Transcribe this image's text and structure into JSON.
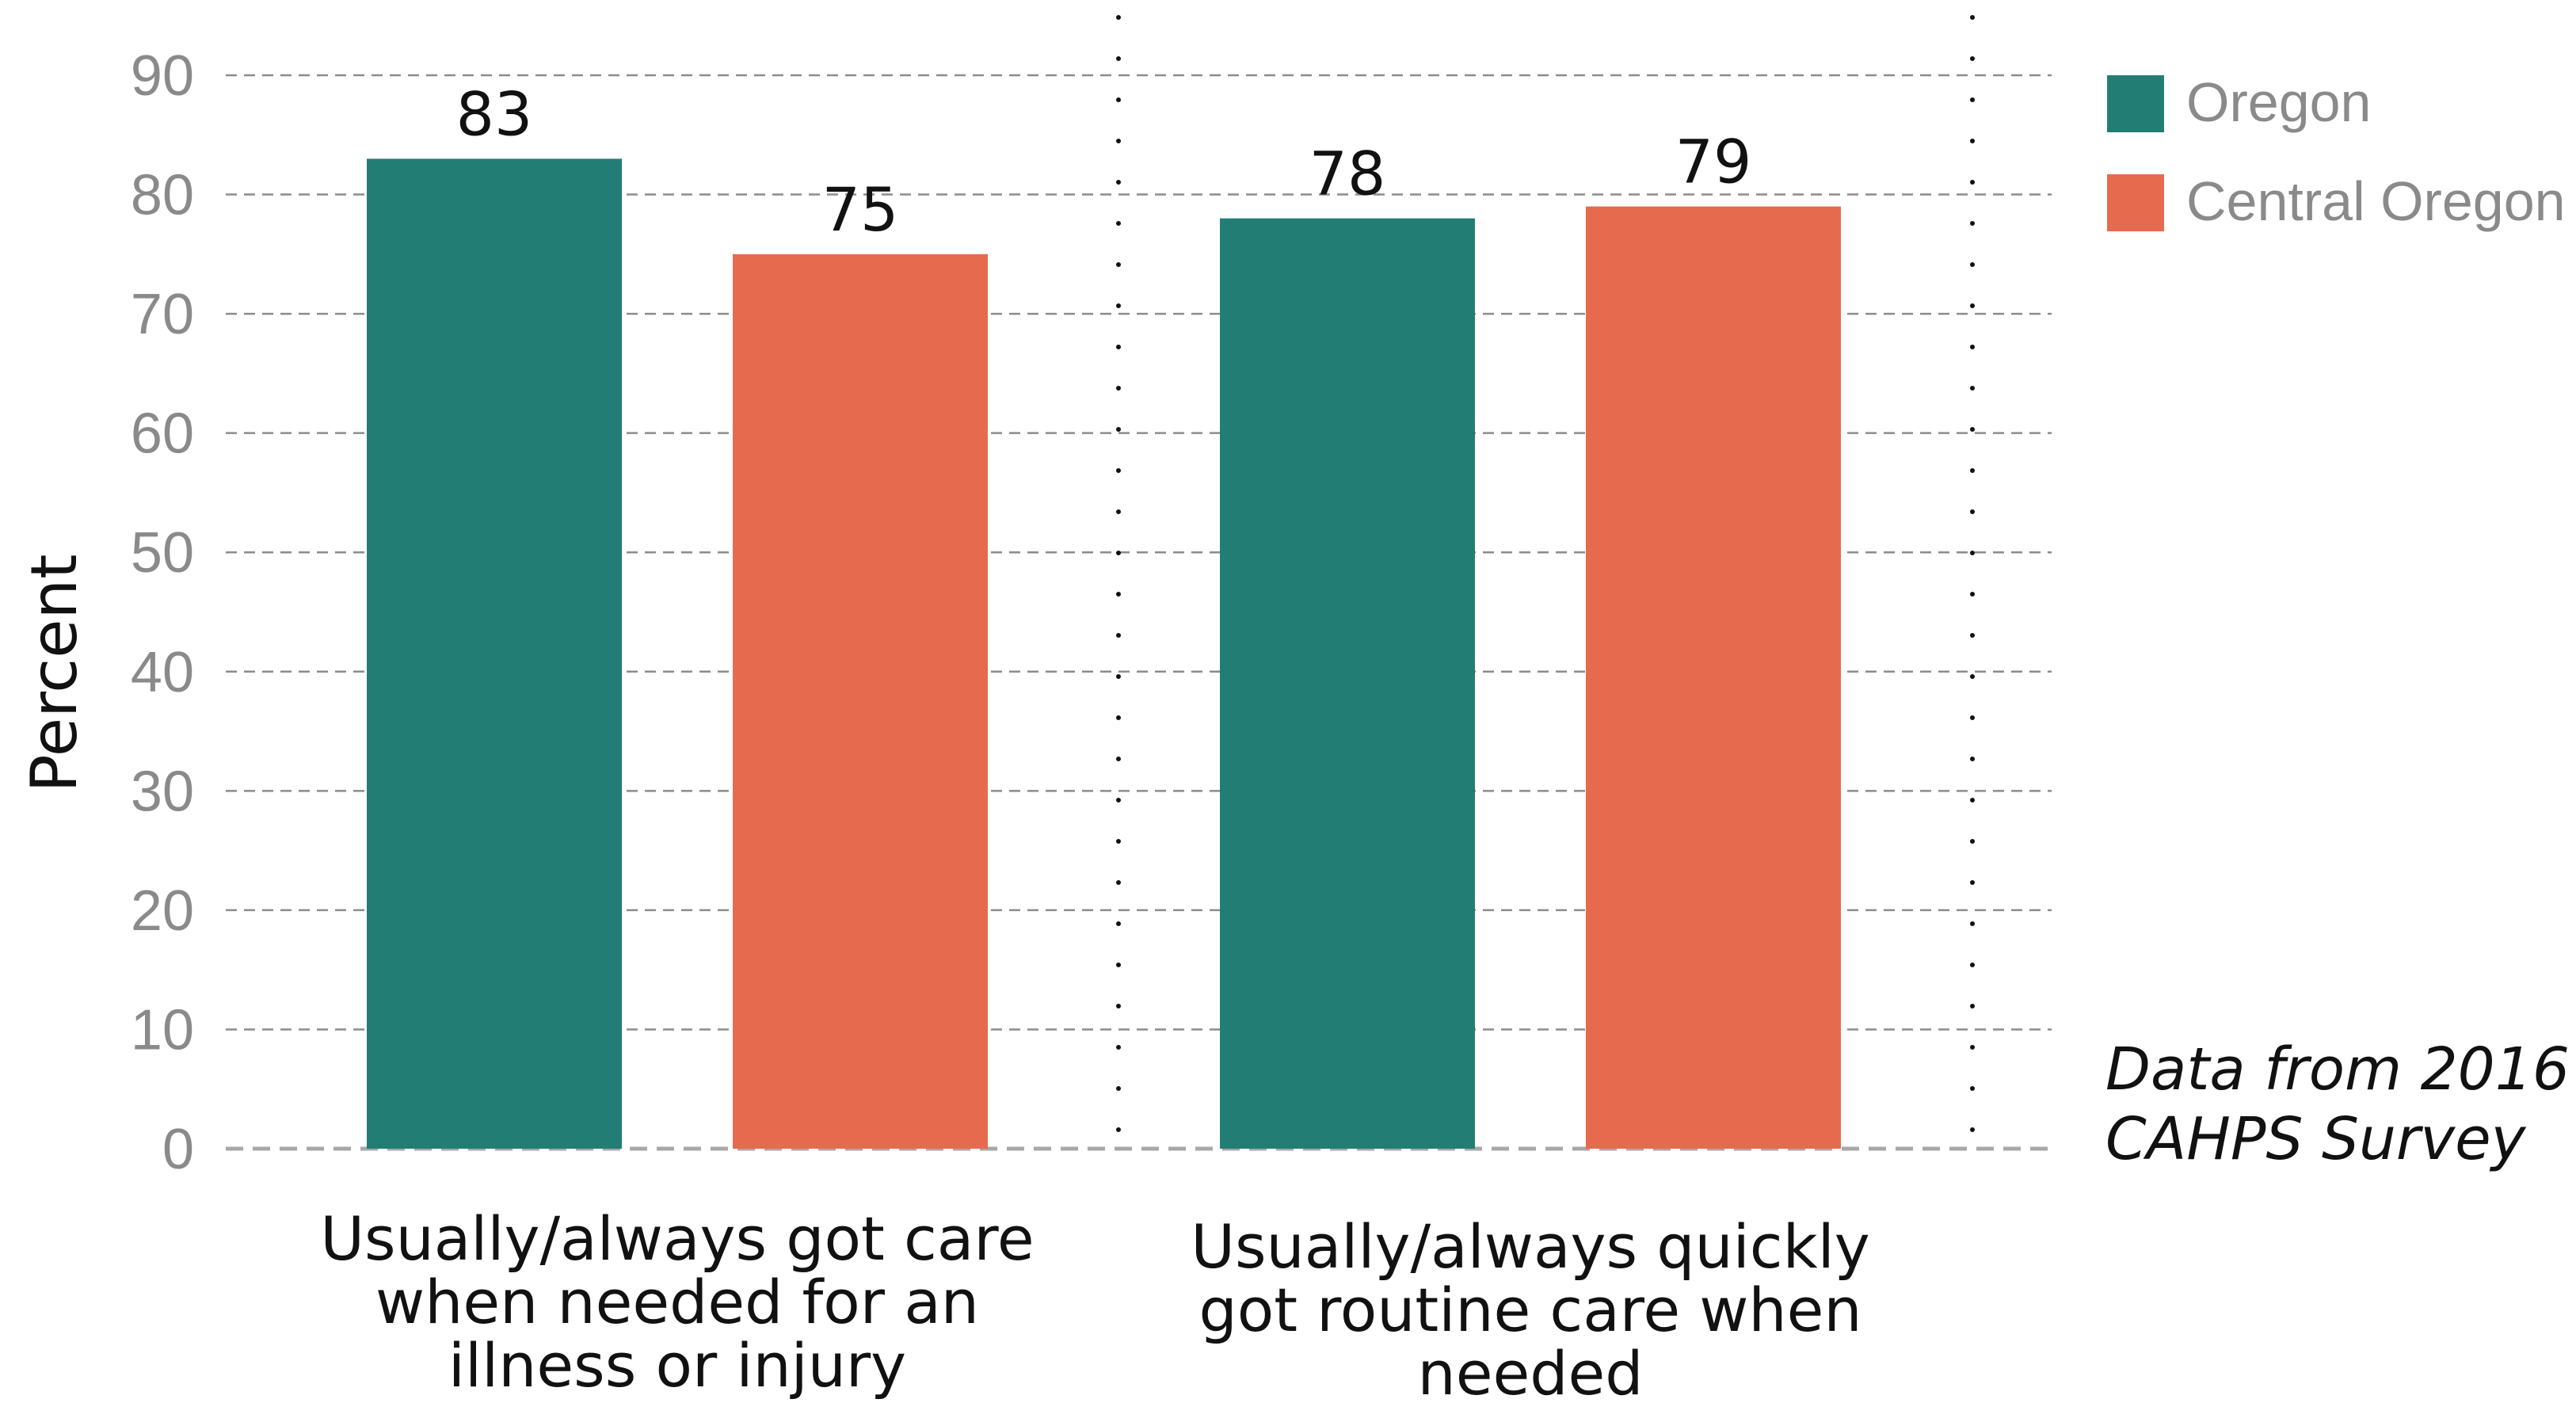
{
  "chart_data": {
    "type": "bar",
    "categories": [
      [
        "Usually/always got care",
        "when needed for an",
        "illness or injury"
      ],
      [
        "Usually/always quickly",
        "got routine care when",
        "needed"
      ]
    ],
    "series": [
      {
        "name": "Oregon",
        "values": [
          83,
          78
        ],
        "color": "#227e74"
      },
      {
        "name": "Central Oregon",
        "values": [
          75,
          79
        ],
        "color": "#e66b4e"
      }
    ],
    "ylabel": "Percent",
    "ylim": [
      0,
      90
    ],
    "yticks": [
      "0",
      "10",
      "20",
      "30",
      "40",
      "50",
      "60",
      "70",
      "80",
      "90"
    ],
    "grid": true,
    "legend": "top-right",
    "annotation": [
      "Data from 2016",
      "CAHPS Survey"
    ]
  }
}
